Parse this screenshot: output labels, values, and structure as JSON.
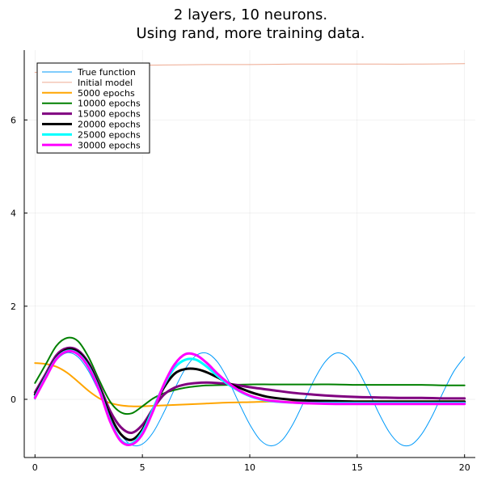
{
  "chart_data": {
    "type": "line",
    "title": "2 layers, 10 neurons.",
    "subtitle": "Using rand, more training data.",
    "xlabel": "",
    "ylabel": "",
    "xlim": [
      -0.5,
      20.5
    ],
    "ylim": [
      -1.25,
      7.5
    ],
    "xticks": [
      0,
      5,
      10,
      15,
      20
    ],
    "yticks": [
      0,
      2,
      4,
      6
    ],
    "grid": true,
    "legend_position": "top-left",
    "series": [
      {
        "name": "True function",
        "color": "#009AFA",
        "width": 1,
        "x": [
          0,
          0.5,
          1,
          1.5,
          2,
          2.5,
          3,
          3.5,
          4,
          4.5,
          5,
          5.5,
          6,
          6.5,
          7,
          7.5,
          8,
          8.5,
          9,
          9.5,
          10,
          10.5,
          11,
          11.5,
          12,
          12.5,
          13,
          13.5,
          14,
          14.5,
          15,
          15.5,
          16,
          16.5,
          17,
          17.5,
          18,
          18.5,
          19,
          19.5,
          20
        ],
        "y": [
          0,
          0.48,
          0.84,
          1.0,
          0.91,
          0.6,
          0.14,
          -0.35,
          -0.76,
          -0.98,
          -0.96,
          -0.71,
          -0.28,
          0.22,
          0.66,
          0.94,
          0.99,
          0.8,
          0.41,
          -0.08,
          -0.54,
          -0.88,
          -1.0,
          -0.88,
          -0.54,
          -0.07,
          0.42,
          0.8,
          0.99,
          0.93,
          0.65,
          0.21,
          -0.29,
          -0.71,
          -0.96,
          -0.98,
          -0.75,
          -0.35,
          0.15,
          0.6,
          0.91
        ]
      },
      {
        "name": "Initial model",
        "color": "#E26F46",
        "opacity": 0.6,
        "width": 1,
        "x": [
          0,
          2,
          4,
          6,
          8,
          10,
          12,
          14,
          16,
          18,
          20
        ],
        "y": [
          7.02,
          7.14,
          7.17,
          7.18,
          7.19,
          7.19,
          7.2,
          7.2,
          7.2,
          7.2,
          7.21
        ]
      },
      {
        "name": "5000 epochs",
        "color": "#FFA500",
        "width": 2,
        "x": [
          0,
          0.5,
          1,
          1.5,
          2,
          2.5,
          3,
          3.5,
          4,
          4.5,
          5,
          5.5,
          6,
          7,
          8,
          9,
          10,
          11,
          12,
          13,
          14,
          15,
          16,
          17,
          18,
          19,
          20
        ],
        "y": [
          0.78,
          0.76,
          0.7,
          0.57,
          0.38,
          0.18,
          0.02,
          -0.08,
          -0.13,
          -0.15,
          -0.15,
          -0.14,
          -0.13,
          -0.11,
          -0.09,
          -0.07,
          -0.06,
          -0.05,
          -0.05,
          -0.04,
          -0.04,
          -0.04,
          -0.04,
          -0.04,
          -0.04,
          -0.04,
          -0.04
        ]
      },
      {
        "name": "10000 epochs",
        "color": "#008000",
        "width": 2,
        "x": [
          0,
          0.5,
          1,
          1.5,
          2,
          2.5,
          3,
          3.5,
          4,
          4.5,
          5,
          5.5,
          6,
          6.5,
          7,
          7.5,
          8,
          9,
          10,
          11,
          12,
          13,
          14,
          15,
          16,
          17,
          18,
          19,
          20
        ],
        "y": [
          0.35,
          0.75,
          1.15,
          1.32,
          1.25,
          0.9,
          0.4,
          -0.05,
          -0.28,
          -0.3,
          -0.15,
          0.02,
          0.13,
          0.2,
          0.25,
          0.28,
          0.3,
          0.31,
          0.32,
          0.32,
          0.32,
          0.32,
          0.32,
          0.31,
          0.31,
          0.31,
          0.31,
          0.3,
          0.3
        ]
      },
      {
        "name": "15000 epochs",
        "color": "#800080",
        "width": 3,
        "x": [
          0,
          0.5,
          1,
          1.5,
          2,
          2.5,
          3,
          3.5,
          4,
          4.5,
          5,
          5.5,
          6,
          6.5,
          7,
          7.5,
          8,
          8.5,
          9,
          9.5,
          10,
          11,
          12,
          13,
          14,
          15,
          16,
          17,
          18,
          19,
          20
        ],
        "y": [
          0.15,
          0.55,
          0.95,
          1.1,
          1.05,
          0.78,
          0.3,
          -0.25,
          -0.6,
          -0.72,
          -0.55,
          -0.2,
          0.1,
          0.25,
          0.32,
          0.35,
          0.36,
          0.35,
          0.33,
          0.3,
          0.26,
          0.2,
          0.14,
          0.1,
          0.07,
          0.05,
          0.04,
          0.03,
          0.03,
          0.02,
          0.02
        ]
      },
      {
        "name": "20000 epochs",
        "color": "#000000",
        "width": 3,
        "x": [
          0,
          0.5,
          1,
          1.5,
          2,
          2.5,
          3,
          3.5,
          4,
          4.5,
          5,
          5.5,
          6,
          6.5,
          7,
          7.5,
          8,
          8.5,
          9,
          9.5,
          10,
          10.5,
          11,
          12,
          13,
          14,
          15,
          16,
          17,
          18,
          19,
          20
        ],
        "y": [
          0.1,
          0.5,
          0.9,
          1.07,
          1.02,
          0.75,
          0.25,
          -0.35,
          -0.75,
          -0.87,
          -0.65,
          -0.2,
          0.25,
          0.55,
          0.65,
          0.65,
          0.58,
          0.47,
          0.35,
          0.25,
          0.16,
          0.09,
          0.04,
          -0.01,
          -0.03,
          -0.04,
          -0.05,
          -0.05,
          -0.05,
          -0.05,
          -0.05,
          -0.05
        ]
      },
      {
        "name": "25000 epochs",
        "color": "#00FFFF",
        "width": 3,
        "x": [
          0,
          0.5,
          1,
          1.5,
          2,
          2.5,
          3,
          3.5,
          4,
          4.5,
          5,
          5.5,
          6,
          6.5,
          7,
          7.5,
          8,
          8.5,
          9,
          9.5,
          10,
          10.5,
          11,
          12,
          13,
          14,
          15,
          16,
          17,
          18,
          19,
          20
        ],
        "y": [
          0.05,
          0.48,
          0.88,
          1.04,
          0.98,
          0.7,
          0.2,
          -0.45,
          -0.88,
          -0.95,
          -0.7,
          -0.2,
          0.3,
          0.68,
          0.85,
          0.85,
          0.7,
          0.5,
          0.32,
          0.18,
          0.07,
          0.0,
          -0.04,
          -0.07,
          -0.08,
          -0.08,
          -0.08,
          -0.08,
          -0.08,
          -0.08,
          -0.08,
          -0.08
        ]
      },
      {
        "name": "30000 epochs",
        "color": "#FF00FF",
        "width": 3,
        "x": [
          0,
          0.5,
          1,
          1.5,
          2,
          2.5,
          3,
          3.5,
          4,
          4.5,
          5,
          5.5,
          6,
          6.5,
          7,
          7.5,
          8,
          8.5,
          9,
          9.5,
          10,
          10.5,
          11,
          12,
          13,
          14,
          15,
          16,
          17,
          18,
          19,
          20
        ],
        "y": [
          0.03,
          0.46,
          0.87,
          1.03,
          0.97,
          0.68,
          0.18,
          -0.48,
          -0.9,
          -0.97,
          -0.75,
          -0.25,
          0.32,
          0.75,
          0.97,
          0.95,
          0.78,
          0.55,
          0.35,
          0.19,
          0.08,
          0.01,
          -0.03,
          -0.07,
          -0.09,
          -0.1,
          -0.1,
          -0.1,
          -0.1,
          -0.1,
          -0.1,
          -0.1
        ]
      }
    ]
  }
}
